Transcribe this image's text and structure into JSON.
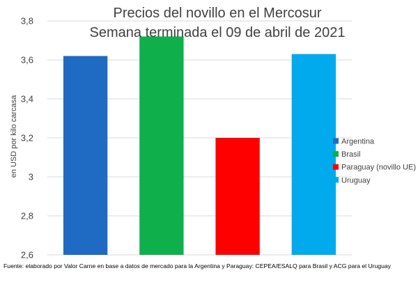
{
  "chart_data": {
    "type": "bar",
    "title": "Precios del novillo en el Mercosur",
    "subtitle": "Semana terminada el 09 de abril de 2021",
    "ylabel": "en USD por kilo carcasa",
    "categories": [
      "Argentina",
      "Brasil",
      "Paraguay (novillo UE)",
      "Uruguay"
    ],
    "values": [
      3.62,
      3.72,
      3.2,
      3.63
    ],
    "colors": [
      "#1f6bc4",
      "#0fb04c",
      "#ff0000",
      "#00aaed"
    ],
    "ylim": [
      2.6,
      3.8
    ],
    "yticks": [
      {
        "value": 2.6,
        "label": "2,6"
      },
      {
        "value": 2.8,
        "label": "2,8"
      },
      {
        "value": 3.0,
        "label": "3"
      },
      {
        "value": 3.2,
        "label": "3,2"
      },
      {
        "value": 3.4,
        "label": "3,4"
      },
      {
        "value": 3.6,
        "label": "3,6"
      },
      {
        "value": 3.8,
        "label": "3,8"
      }
    ],
    "grid": true,
    "legend_position": "right"
  },
  "source_note": "Fuente: elaborado por Valor Carne en base a datos de mercado para la Argentina y Paraguay: CEPEA/ESALQ para Brasil y ACG para el Uruguay"
}
